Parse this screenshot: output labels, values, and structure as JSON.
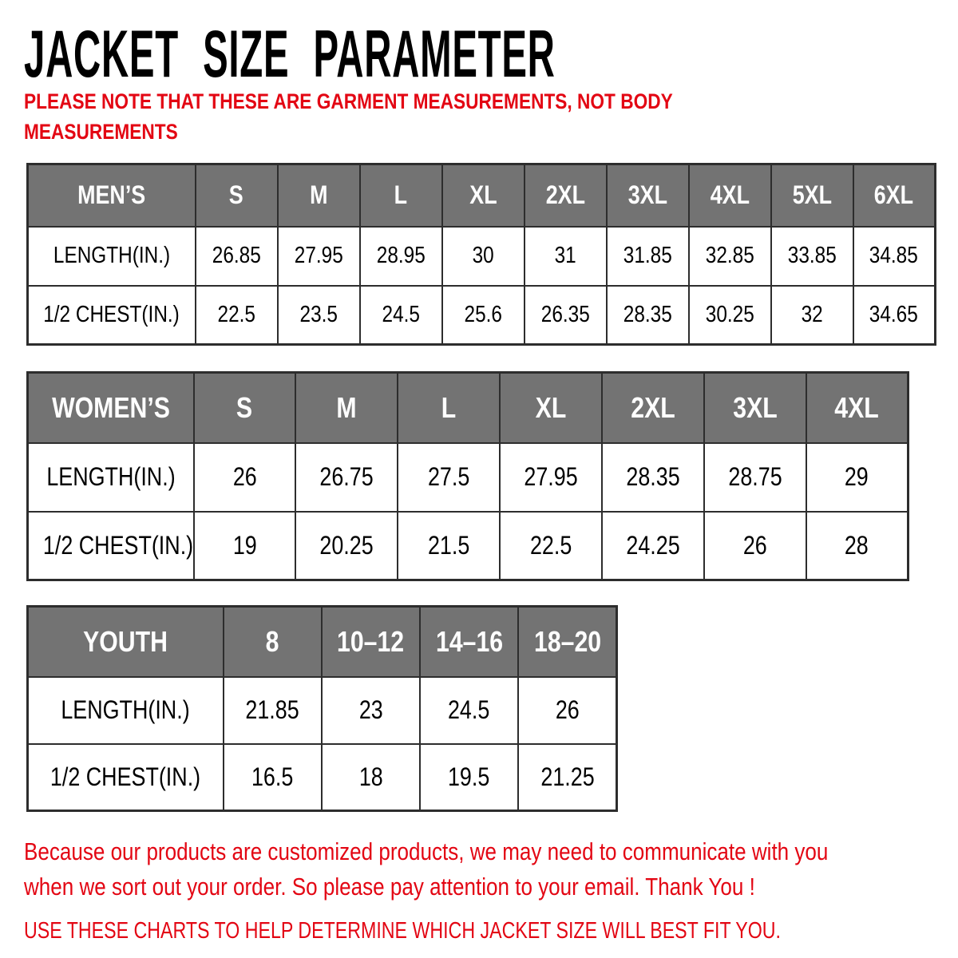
{
  "title": "JACKET SIZE PARAMETER",
  "note": {
    "lines": [
      "PLEASE NOTE THAT THESE ARE GARMENT MEASUREMENTS, NOT BODY",
      "MEASUREMENTS"
    ]
  },
  "tables": [
    {
      "id": "mens",
      "header": [
        "MEN’S",
        "S",
        "M",
        "L",
        "XL",
        "2XL",
        "3XL",
        "4XL",
        "5XL",
        "6XL"
      ],
      "rows": [
        [
          "LENGTH(IN.)",
          "26.85",
          "27.95",
          "28.95",
          "30",
          "31",
          "31.85",
          "32.85",
          "33.85",
          "34.85"
        ],
        [
          "1/2 CHEST(IN.)",
          "22.5",
          "23.5",
          "24.5",
          "25.6",
          "26.35",
          "28.35",
          "30.25",
          "32",
          "34.65"
        ]
      ]
    },
    {
      "id": "womens",
      "header": [
        "WOMEN’S",
        "S",
        "M",
        "L",
        "XL",
        "2XL",
        "3XL",
        "4XL"
      ],
      "rows": [
        [
          "LENGTH(IN.)",
          "26",
          "26.75",
          "27.5",
          "27.95",
          "28.35",
          "28.75",
          "29"
        ],
        [
          "1/2 CHEST(IN.)",
          "19",
          "20.25",
          "21.5",
          "22.5",
          "24.25",
          "26",
          "28"
        ]
      ]
    },
    {
      "id": "youth",
      "header": [
        "YOUTH",
        "8",
        "10–12",
        "14–16",
        "18–20"
      ],
      "rows": [
        [
          "LENGTH(IN.)",
          "21.85",
          "23",
          "24.5",
          "26"
        ],
        [
          "1/2 CHEST(IN.)",
          "16.5",
          "18",
          "19.5",
          "21.25"
        ]
      ]
    }
  ],
  "footer": {
    "paragraph1_lines": [
      "Because our products are customized products, we may need to communicate with you",
      "when we sort out your order. So please pay attention to your email. Thank You !"
    ],
    "paragraph2": "USE THESE CHARTS TO HELP DETERMINE WHICH JACKET SIZE WILL BEST FIT YOU."
  },
  "colors": {
    "accent_red": "#e30613",
    "header_gray": "#737373",
    "header_text": "#ffffff",
    "border_dark": "#2d2d2d",
    "text_black": "#000000"
  }
}
